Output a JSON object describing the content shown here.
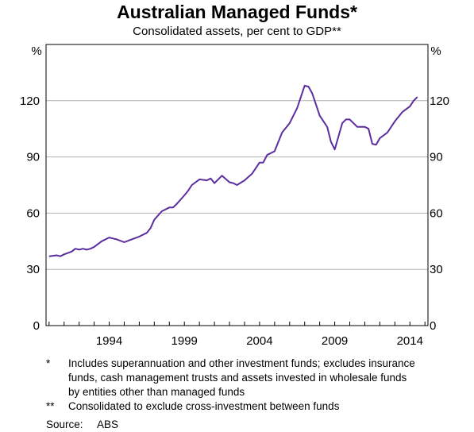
{
  "chart_data": {
    "type": "line",
    "title": "Australian Managed Funds*",
    "subtitle": "Consolidated assets, per cent to GDP**",
    "ylabel_left": "%",
    "ylabel_right": "%",
    "ylim": [
      0,
      150
    ],
    "yticks": [
      0,
      30,
      60,
      90,
      120
    ],
    "xlim": [
      1989.8,
      2015.2
    ],
    "xticks": [
      1994,
      1999,
      2004,
      2009,
      2014
    ],
    "xtick_labels": [
      "1994",
      "1999",
      "2004",
      "2009",
      "2014"
    ],
    "grid": true,
    "line_color": "#5b2d9e",
    "series": [
      {
        "x": [
          1990.0,
          1990.5,
          1990.75,
          1991.0,
          1991.5,
          1991.75,
          1992.0,
          1992.25,
          1992.5,
          1992.75,
          1993.0,
          1993.5,
          1994.0,
          1994.25,
          1994.5,
          1995.0,
          1995.5,
          1996.0,
          1996.5,
          1996.75,
          1997.0,
          1997.5,
          1998.0,
          1998.25,
          1998.5,
          1999.0,
          1999.25,
          1999.5,
          2000.0,
          2000.5,
          2000.75,
          2001.0,
          2001.5,
          2002.0,
          2002.25,
          2002.5,
          2003.0,
          2003.5,
          2004.0,
          2004.25,
          2004.5,
          2005.0,
          2005.5,
          2006.0,
          2006.5,
          2007.0,
          2007.25,
          2007.5,
          2008.0,
          2008.5,
          2008.75,
          2009.0,
          2009.5,
          2009.75,
          2010.0,
          2010.5,
          2011.0,
          2011.25,
          2011.5,
          2011.75,
          2012.0,
          2012.5,
          2013.0,
          2013.5,
          2014.0,
          2014.25,
          2014.5
        ],
        "y": [
          37,
          37.5,
          37,
          38,
          39.5,
          41,
          40.5,
          41,
          40.5,
          41,
          42,
          45,
          47,
          46.5,
          46,
          44.5,
          46,
          47.5,
          49.5,
          52,
          56.5,
          61,
          63,
          63,
          65,
          69.5,
          72,
          75,
          78,
          77.5,
          78.5,
          76,
          80,
          76.5,
          76,
          75,
          77.5,
          81,
          87,
          87,
          91,
          93,
          103,
          108,
          116,
          128,
          127.5,
          124,
          112,
          106,
          98,
          94,
          108,
          110,
          110,
          106,
          106,
          105,
          97,
          96.5,
          100,
          103,
          109,
          114,
          117,
          120,
          122
        ]
      }
    ]
  },
  "notes": [
    {
      "mark": "*",
      "text": "Includes superannuation and other investment funds; excludes insurance funds, cash management trusts and assets invested in wholesale funds by entities other than managed funds"
    },
    {
      "mark": "**",
      "text": "Consolidated to exclude cross-investment between funds"
    }
  ],
  "source": {
    "label": "Source:",
    "value": "ABS"
  }
}
